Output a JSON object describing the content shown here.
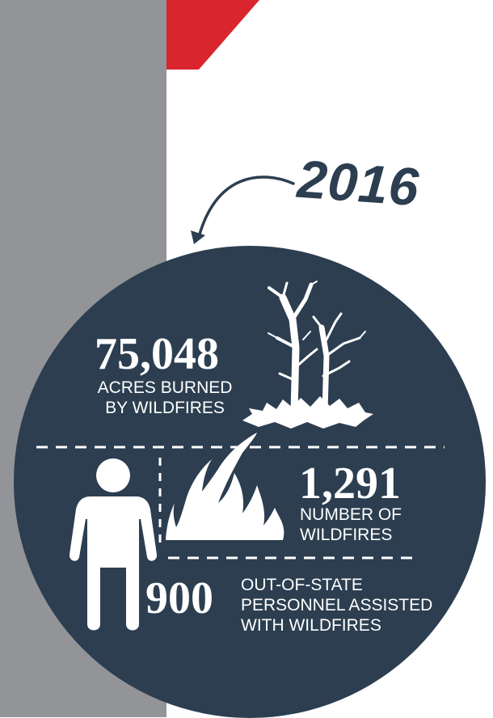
{
  "year": "2016",
  "stats": {
    "acres": {
      "value": "75,048",
      "label": "ACRES BURNED\nBY WILDFIRES"
    },
    "fires": {
      "value": "1,291",
      "label": "NUMBER OF\nWILDFIRES"
    },
    "personnel": {
      "value": "900",
      "label": "OUT-OF-STATE\nPERSONNEL ASSISTED\nWITH WILDFIRES"
    }
  },
  "colors": {
    "circle": "#2c3e50",
    "band": "#939498",
    "accent": "#d9262e",
    "text": "#ffffff"
  },
  "icons": [
    "arrow-icon",
    "burnt-trees-icon",
    "flame-icon",
    "person-icon"
  ]
}
